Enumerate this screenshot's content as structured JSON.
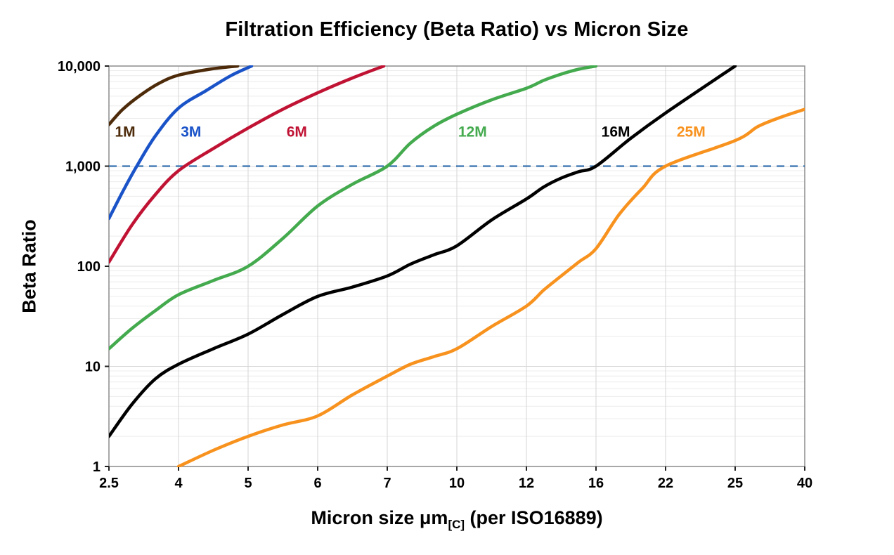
{
  "chart_data": {
    "type": "line",
    "title": "Filtration Efficiency (Beta Ratio) vs Micron Size",
    "ylabel": "Beta Ratio",
    "xlabel_main": "Micron size μm",
    "xlabel_sub": "[C]",
    "xlabel_rest": " (per ISO16889)",
    "x_scale": "category-linear",
    "y_scale": "log",
    "ylim": [
      1,
      10000
    ],
    "x_ticks": [
      2.5,
      4,
      5,
      6,
      7,
      10,
      12,
      16,
      22,
      25,
      40
    ],
    "x_tick_labels": [
      "2.5",
      "4",
      "5",
      "6",
      "7",
      "10",
      "12",
      "16",
      "22",
      "25",
      "40"
    ],
    "y_ticks": [
      1,
      10,
      100,
      1000,
      10000
    ],
    "y_tick_labels": [
      "1",
      "10",
      "100",
      "1,000",
      "10,000"
    ],
    "grid": "on",
    "reference_line": {
      "y": 1000,
      "color": "#3570ad",
      "style": "dashed"
    },
    "colors": {
      "grid_minor": "#ececec",
      "grid_major": "#d6d6d6",
      "frame": "#8c8c8c",
      "tick": "#222222",
      "text": "#000000",
      "background": "#ffffff"
    },
    "series": [
      {
        "name": "1M",
        "color": "#4d2b0a",
        "label_x": 2.85,
        "label_y": 2200,
        "points": [
          [
            2.5,
            2600
          ],
          [
            2.8,
            3700
          ],
          [
            3.2,
            5200
          ],
          [
            3.6,
            6800
          ],
          [
            4.0,
            8100
          ],
          [
            4.45,
            9300
          ],
          [
            4.85,
            10000
          ]
        ]
      },
      {
        "name": "3M",
        "color": "#1a53c8",
        "label_x": 4.18,
        "label_y": 2200,
        "points": [
          [
            2.5,
            300
          ],
          [
            2.8,
            560
          ],
          [
            3.1,
            1000
          ],
          [
            3.5,
            2000
          ],
          [
            4.0,
            3800
          ],
          [
            4.4,
            5700
          ],
          [
            4.75,
            8000
          ],
          [
            5.05,
            10000
          ]
        ]
      },
      {
        "name": "6M",
        "color": "#c01334",
        "label_x": 5.7,
        "label_y": 2200,
        "points": [
          [
            2.5,
            110
          ],
          [
            3,
            260
          ],
          [
            3.5,
            520
          ],
          [
            4,
            900
          ],
          [
            4.5,
            1500
          ],
          [
            5,
            2400
          ],
          [
            5.5,
            3700
          ],
          [
            6,
            5400
          ],
          [
            6.5,
            7600
          ],
          [
            6.95,
            10000
          ]
        ]
      },
      {
        "name": "12M",
        "color": "#44aa4e",
        "label_x": 10.45,
        "label_y": 2200,
        "points": [
          [
            2.5,
            15
          ],
          [
            3,
            24
          ],
          [
            3.5,
            36
          ],
          [
            4,
            52
          ],
          [
            4.5,
            72
          ],
          [
            5,
            100
          ],
          [
            5.5,
            190
          ],
          [
            6,
            400
          ],
          [
            6.5,
            660
          ],
          [
            7,
            1000
          ],
          [
            8,
            1700
          ],
          [
            9,
            2500
          ],
          [
            10,
            3300
          ],
          [
            11,
            4600
          ],
          [
            12,
            6000
          ],
          [
            13,
            7200
          ],
          [
            14,
            8300
          ],
          [
            15,
            9300
          ],
          [
            16,
            10000
          ]
        ]
      },
      {
        "name": "16M",
        "color": "#000000",
        "label_x": 17.7,
        "label_y": 2200,
        "points": [
          [
            2.5,
            2
          ],
          [
            3,
            4.2
          ],
          [
            3.5,
            7.5
          ],
          [
            4,
            10.5
          ],
          [
            4.5,
            15
          ],
          [
            5,
            21
          ],
          [
            5.5,
            33
          ],
          [
            6,
            50
          ],
          [
            6.5,
            62
          ],
          [
            7,
            80
          ],
          [
            8,
            105
          ],
          [
            9,
            130
          ],
          [
            10,
            160
          ],
          [
            11,
            290
          ],
          [
            12,
            470
          ],
          [
            13,
            620
          ],
          [
            14,
            760
          ],
          [
            15,
            880
          ],
          [
            16,
            1000
          ],
          [
            19,
            1900
          ],
          [
            22,
            3400
          ],
          [
            25,
            10000
          ]
        ]
      },
      {
        "name": "25M",
        "color": "#f8921e",
        "label_x": 23.1,
        "label_y": 2200,
        "points": [
          [
            4,
            1
          ],
          [
            4.5,
            1.45
          ],
          [
            5,
            2
          ],
          [
            5.5,
            2.6
          ],
          [
            6,
            3.2
          ],
          [
            6.5,
            5.2
          ],
          [
            7,
            8
          ],
          [
            8,
            10.5
          ],
          [
            9,
            12.5
          ],
          [
            10,
            15
          ],
          [
            11,
            25
          ],
          [
            12,
            40
          ],
          [
            13,
            58
          ],
          [
            14,
            80
          ],
          [
            15,
            110
          ],
          [
            16,
            150
          ],
          [
            18,
            330
          ],
          [
            20,
            600
          ],
          [
            22,
            1000
          ],
          [
            25,
            1800
          ],
          [
            30,
            2500
          ],
          [
            35,
            3100
          ],
          [
            40,
            3700
          ]
        ]
      }
    ]
  }
}
